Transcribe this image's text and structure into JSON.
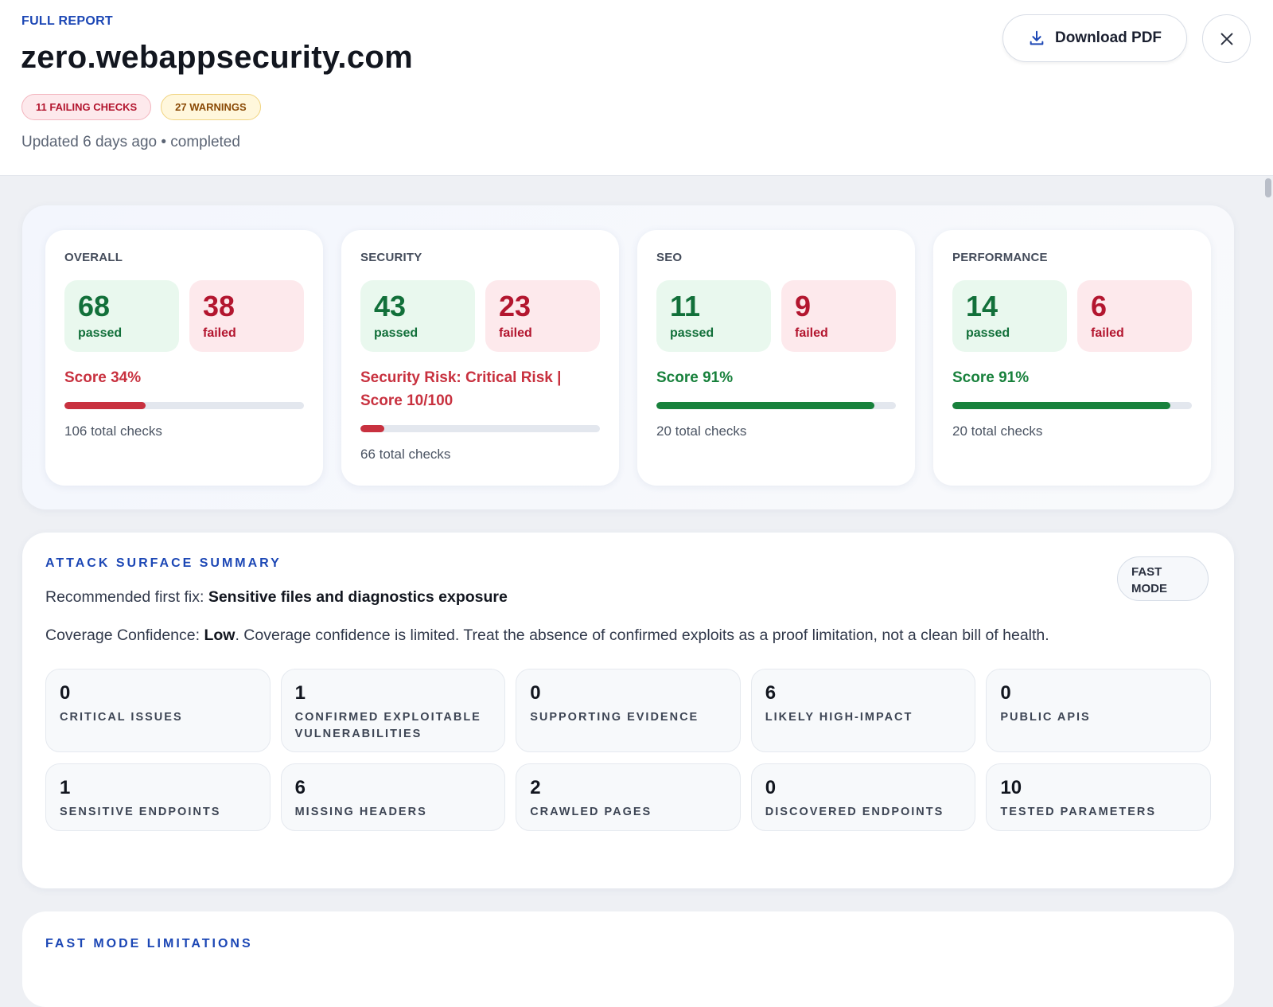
{
  "header": {
    "eyebrow": "FULL REPORT",
    "title": "zero.webappsecurity.com",
    "badges": [
      {
        "text": "11 FAILING CHECKS",
        "tone": "danger"
      },
      {
        "text": "27 WARNINGS",
        "tone": "warning"
      }
    ],
    "status": "Updated 6 days ago • completed",
    "download": "Download PDF"
  },
  "labels": {
    "passed": "passed",
    "failed": "failed"
  },
  "scorecards": [
    {
      "label": "OVERALL",
      "passed": 68,
      "failed": 38,
      "score": "Score 34%",
      "progress": 34,
      "color": "#c8313f",
      "total": "106 total checks"
    },
    {
      "label": "SECURITY",
      "passed": 43,
      "failed": 23,
      "score": "Security Risk: Critical Risk | Score 10/100",
      "progress": 10,
      "color": "#c8313f",
      "total": "66 total checks"
    },
    {
      "label": "SEO",
      "passed": 11,
      "failed": 9,
      "score": "Score 91%",
      "progress": 91,
      "color": "#18813c",
      "total": "20 total checks"
    },
    {
      "label": "PERFORMANCE",
      "passed": 14,
      "failed": 6,
      "score": "Score 91%",
      "progress": 91,
      "color": "#18813c",
      "total": "20 total checks"
    }
  ],
  "attack_surface": {
    "title": "ATTACK SURFACE SUMMARY",
    "mode": "FAST MODE",
    "recommended": {
      "label": "Recommended first fix:",
      "value": "Sensitive files and diagnostics exposure"
    },
    "coverage": {
      "label": "Coverage Confidence:",
      "value": "Low",
      "text": ". Coverage confidence is limited. Treat the absence of confirmed exploits as a proof limitation, not a clean bill of health."
    },
    "metrics": [
      {
        "value": 0,
        "label": "CRITICAL ISSUES"
      },
      {
        "value": 1,
        "label": "CONFIRMED EXPLOITABLE VULNERABILITIES"
      },
      {
        "value": 0,
        "label": "SUPPORTING EVIDENCE"
      },
      {
        "value": 6,
        "label": "LIKELY HIGH-IMPACT"
      },
      {
        "value": 0,
        "label": "PUBLIC APIS"
      },
      {
        "value": 1,
        "label": "SENSITIVE ENDPOINTS"
      },
      {
        "value": 6,
        "label": "MISSING HEADERS"
      },
      {
        "value": 2,
        "label": "CRAWLED PAGES"
      },
      {
        "value": 0,
        "label": "DISCOVERED ENDPOINTS"
      },
      {
        "value": 10,
        "label": "TESTED PARAMETERS"
      }
    ]
  },
  "next_section": {
    "title": "FAST MODE LIMITATIONS"
  }
}
